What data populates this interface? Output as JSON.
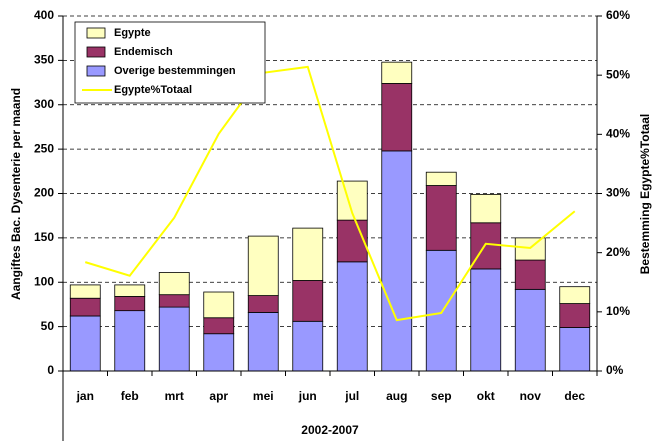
{
  "chart_data": {
    "type": "stacked-bar-line",
    "y_label": "Aangiftes Bac. Dysenterie per maand",
    "y2_label": "Bestemming Egypte%Totaal",
    "x_label": "2002-2007",
    "categories": [
      "jan",
      "feb",
      "mrt",
      "apr",
      "mei",
      "jun",
      "jul",
      "aug",
      "sep",
      "okt",
      "nov",
      "dec"
    ],
    "series": [
      {
        "name": "Overige bestemmingen",
        "color": "#9999ff",
        "type": "bar",
        "values": [
          62,
          68,
          72,
          42,
          66,
          56,
          123,
          248,
          136,
          115,
          92,
          49
        ]
      },
      {
        "name": "Endemisch",
        "color": "#993366",
        "type": "bar",
        "values": [
          20,
          16,
          14,
          18,
          19,
          46,
          47,
          76,
          73,
          52,
          33,
          27
        ]
      },
      {
        "name": "Egypte",
        "color": "#ffffc0",
        "type": "bar",
        "values": [
          15,
          13,
          25,
          29,
          67,
          59,
          44,
          24,
          15,
          32,
          25,
          19
        ]
      },
      {
        "name": "Egypte%Totaal",
        "color": "#ffff00",
        "type": "line",
        "axis": "y2",
        "values": [
          18.4,
          16.1,
          25.9,
          40.1,
          50.4,
          51.4,
          26.7,
          8.6,
          9.8,
          21.5,
          20.8,
          27.0
        ]
      }
    ],
    "ylim": [
      0,
      400
    ],
    "yticks": [
      0,
      50,
      100,
      150,
      200,
      250,
      300,
      350,
      400
    ],
    "y2lim": [
      0,
      60
    ],
    "y2ticks": [
      {
        "value": 0,
        "label": "0%"
      },
      {
        "value": 10,
        "label": "10%"
      },
      {
        "value": 20,
        "label": "20%"
      },
      {
        "value": 30,
        "label": "30%"
      },
      {
        "value": 40,
        "label": "40%"
      },
      {
        "value": 50,
        "label": "50%"
      },
      {
        "value": 60,
        "label": "60%"
      }
    ],
    "grid": true,
    "legend": "top-left"
  }
}
